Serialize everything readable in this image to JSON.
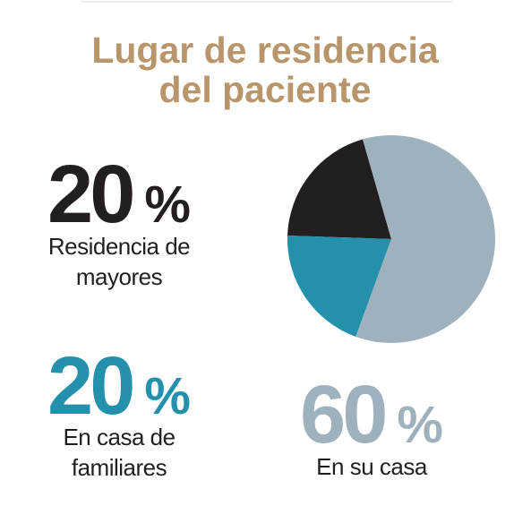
{
  "chart_data": {
    "type": "pie",
    "title": "Lugar de residencia del paciente",
    "title_color": "#b8956a",
    "categories": [
      "Residencia de mayores",
      "En casa de familiares",
      "En su casa"
    ],
    "values": [
      20,
      20,
      60
    ],
    "value_labels": [
      "20 %",
      "20 %",
      "60 %"
    ],
    "colors": [
      "#231f20",
      "#2490ab",
      "#9fb1bd"
    ]
  }
}
